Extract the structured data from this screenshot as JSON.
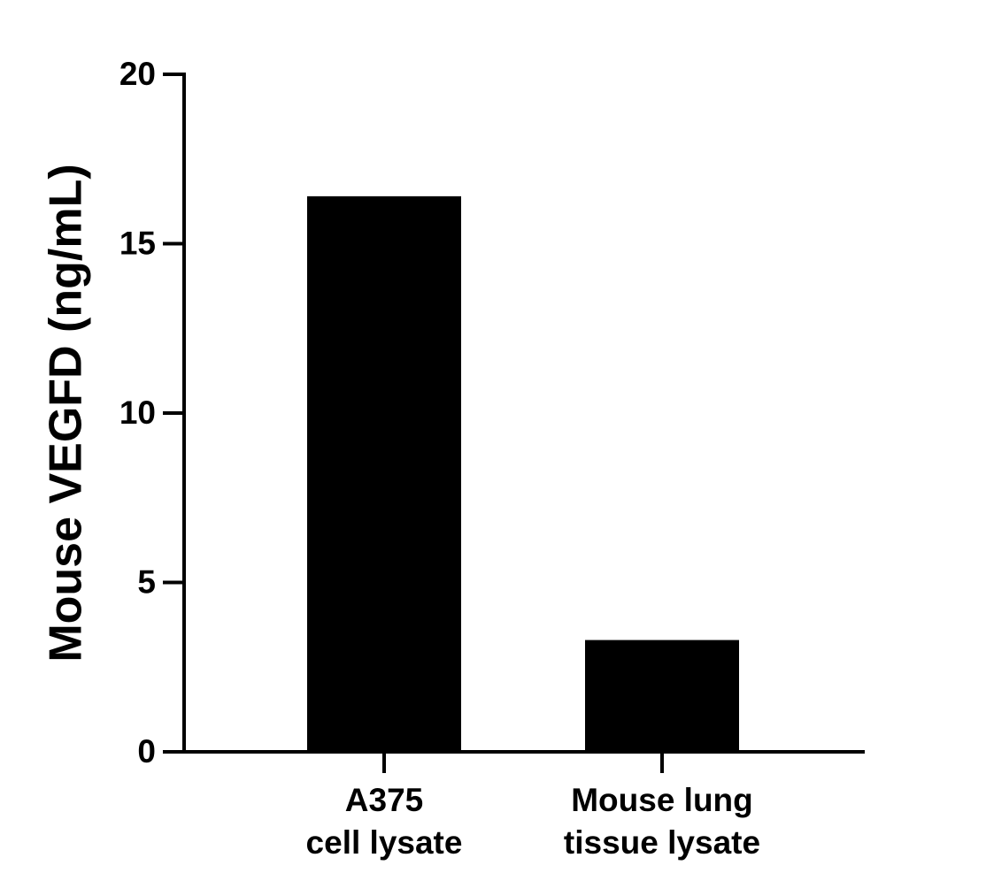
{
  "chart_data": {
    "type": "bar",
    "y_label": "Mouse VEGFD (ng/mL)",
    "categories": [
      [
        "A375",
        "cell lysate"
      ],
      [
        "Mouse lung",
        "tissue lysate"
      ]
    ],
    "values": [
      16.4,
      3.3
    ],
    "color": "#000000",
    "ylim": [
      0,
      20
    ],
    "yticks": [
      0,
      5,
      10,
      15,
      20
    ],
    "grid": false
  }
}
